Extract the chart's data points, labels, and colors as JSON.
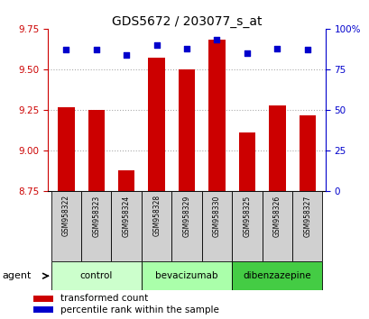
{
  "title": "GDS5672 / 203077_s_at",
  "samples": [
    "GSM958322",
    "GSM958323",
    "GSM958324",
    "GSM958328",
    "GSM958329",
    "GSM958330",
    "GSM958325",
    "GSM958326",
    "GSM958327"
  ],
  "transformed_counts": [
    9.27,
    9.25,
    8.88,
    9.57,
    9.5,
    9.68,
    9.11,
    9.28,
    9.22
  ],
  "percentile_ranks": [
    87,
    87,
    84,
    90,
    88,
    93,
    85,
    88,
    87
  ],
  "groups": [
    {
      "label": "control",
      "indices": [
        0,
        1,
        2
      ],
      "color": "#ccffcc"
    },
    {
      "label": "bevacizumab",
      "indices": [
        3,
        4,
        5
      ],
      "color": "#aaffaa"
    },
    {
      "label": "dibenzazepine",
      "indices": [
        6,
        7,
        8
      ],
      "color": "#44cc44"
    }
  ],
  "bar_color": "#cc0000",
  "dot_color": "#0000cc",
  "ylim_left": [
    8.75,
    9.75
  ],
  "ylim_right": [
    0,
    100
  ],
  "yticks_left": [
    8.75,
    9.0,
    9.25,
    9.5,
    9.75
  ],
  "yticks_right": [
    0,
    25,
    50,
    75,
    100
  ],
  "grid_vals": [
    9.0,
    9.25,
    9.5
  ],
  "grid_color": "#aaaaaa",
  "agent_label": "agent",
  "legend_items": [
    {
      "label": "transformed count",
      "color": "#cc0000"
    },
    {
      "label": "percentile rank within the sample",
      "color": "#0000cc"
    }
  ]
}
